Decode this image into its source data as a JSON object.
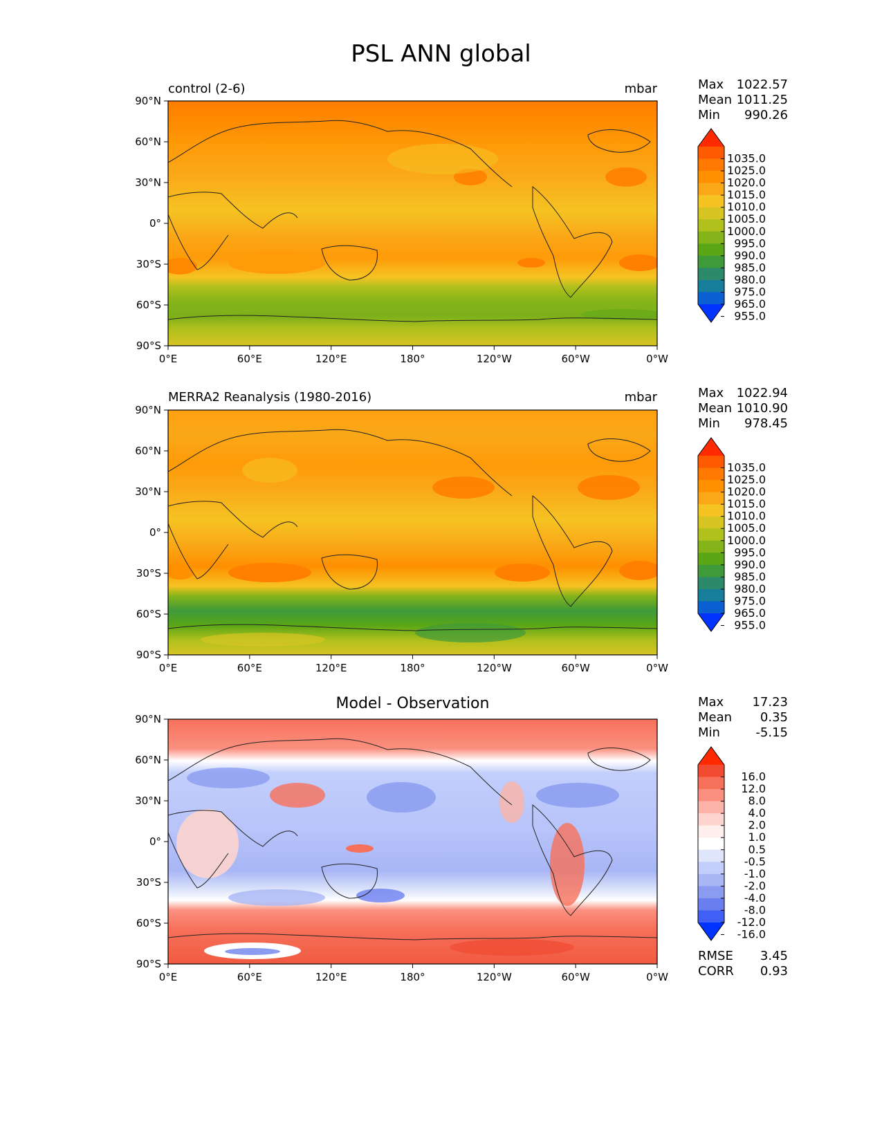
{
  "figure": {
    "title": "PSL ANN global"
  },
  "axes": {
    "lat_ticks": [
      "90°N",
      "60°N",
      "30°N",
      "0°",
      "30°S",
      "60°S",
      "90°S"
    ],
    "lon_ticks": [
      "0°E",
      "60°E",
      "120°E",
      "180°",
      "120°W",
      "60°W",
      "0°W"
    ]
  },
  "panels": [
    {
      "id": "test",
      "title_left": "control (2-6)",
      "units": "mbar",
      "stats": [
        {
          "label": "Max",
          "value": "1022.57"
        },
        {
          "label": "Mean",
          "value": "1011.25"
        },
        {
          "label": "Min",
          "value": "990.26"
        }
      ],
      "colorbar_labels": [
        "1035.0",
        "1025.0",
        "1020.0",
        "1015.0",
        "1010.0",
        "1005.0",
        "1000.0",
        "995.0",
        "990.0",
        "985.0",
        "980.0",
        "975.0",
        "965.0",
        "955.0"
      ]
    },
    {
      "id": "reference",
      "title_left": "MERRA2 Reanalysis (1980-2016)",
      "units": "mbar",
      "stats": [
        {
          "label": "Max",
          "value": "1022.94"
        },
        {
          "label": "Mean",
          "value": "1010.90"
        },
        {
          "label": "Min",
          "value": "978.45"
        }
      ],
      "colorbar_labels": [
        "1035.0",
        "1025.0",
        "1020.0",
        "1015.0",
        "1010.0",
        "1005.0",
        "1000.0",
        "995.0",
        "990.0",
        "985.0",
        "980.0",
        "975.0",
        "965.0",
        "955.0"
      ]
    },
    {
      "id": "difference",
      "title_center": "Model - Observation",
      "stats": [
        {
          "label": "Max",
          "value": "17.23"
        },
        {
          "label": "Mean",
          "value": "0.35"
        },
        {
          "label": "Min",
          "value": "-5.15"
        }
      ],
      "colorbar_labels": [
        "16.0",
        "12.0",
        "8.0",
        "4.0",
        "2.0",
        "1.0",
        "0.5",
        "-0.5",
        "-1.0",
        "-2.0",
        "-4.0",
        "-8.0",
        "-12.0",
        "-16.0"
      ],
      "extra_stats": [
        {
          "label": "RMSE",
          "value": "3.45"
        },
        {
          "label": "CORR",
          "value": "0.93"
        }
      ]
    }
  ],
  "colors": {
    "psl": [
      "#ff2a00",
      "#ff5a00",
      "#ff7800",
      "#ff9000",
      "#faa818",
      "#f5c322",
      "#d6c422",
      "#b0c01d",
      "#84b41a",
      "#5aa617",
      "#3f9a3a",
      "#2c8a6a",
      "#167e9a",
      "#0a5fd1",
      "#0033ff"
    ],
    "diff": [
      "#ff2a00",
      "#f04a30",
      "#f7705a",
      "#fb9080",
      "#fcb4a8",
      "#fdd4ce",
      "#fff0ee",
      "#ffffff",
      "#dfe6fb",
      "#c2cefb",
      "#a8b6f5",
      "#8b9cf0",
      "#6a7ef0",
      "#4060f5",
      "#0033ff"
    ]
  },
  "chart_data": [
    {
      "type": "heatmap",
      "title": "control (2-6)",
      "units": "mbar",
      "x_range": [
        0,
        360
      ],
      "y_range": [
        -90,
        90
      ],
      "xticks": [
        "0°E",
        "60°E",
        "120°E",
        "180°",
        "120°W",
        "60°W",
        "0°W"
      ],
      "yticks": [
        "90°N",
        "60°N",
        "30°N",
        "0°",
        "30°S",
        "60°S",
        "90°S"
      ],
      "levels": [
        955,
        965,
        975,
        980,
        985,
        990,
        995,
        1000,
        1005,
        1010,
        1015,
        1020,
        1025,
        1035
      ],
      "stats": {
        "max": 1022.57,
        "mean": 1011.25,
        "min": 990.26
      }
    },
    {
      "type": "heatmap",
      "title": "MERRA2 Reanalysis (1980-2016)",
      "units": "mbar",
      "x_range": [
        0,
        360
      ],
      "y_range": [
        -90,
        90
      ],
      "xticks": [
        "0°E",
        "60°E",
        "120°E",
        "180°",
        "120°W",
        "60°W",
        "0°W"
      ],
      "yticks": [
        "90°N",
        "60°N",
        "30°N",
        "0°",
        "30°S",
        "60°S",
        "90°S"
      ],
      "levels": [
        955,
        965,
        975,
        980,
        985,
        990,
        995,
        1000,
        1005,
        1010,
        1015,
        1020,
        1025,
        1035
      ],
      "stats": {
        "max": 1022.94,
        "mean": 1010.9,
        "min": 978.45
      }
    },
    {
      "type": "heatmap",
      "title": "Model - Observation",
      "x_range": [
        0,
        360
      ],
      "y_range": [
        -90,
        90
      ],
      "xticks": [
        "0°E",
        "60°E",
        "120°E",
        "180°",
        "120°W",
        "60°W",
        "0°W"
      ],
      "yticks": [
        "90°N",
        "60°N",
        "30°N",
        "0°",
        "30°S",
        "60°S",
        "90°S"
      ],
      "levels": [
        -16,
        -12,
        -8,
        -4,
        -2,
        -1,
        -0.5,
        0.5,
        1,
        2,
        4,
        8,
        12,
        16
      ],
      "stats": {
        "max": 17.23,
        "mean": 0.35,
        "min": -5.15,
        "rmse": 3.45,
        "corr": 0.93
      }
    }
  ]
}
